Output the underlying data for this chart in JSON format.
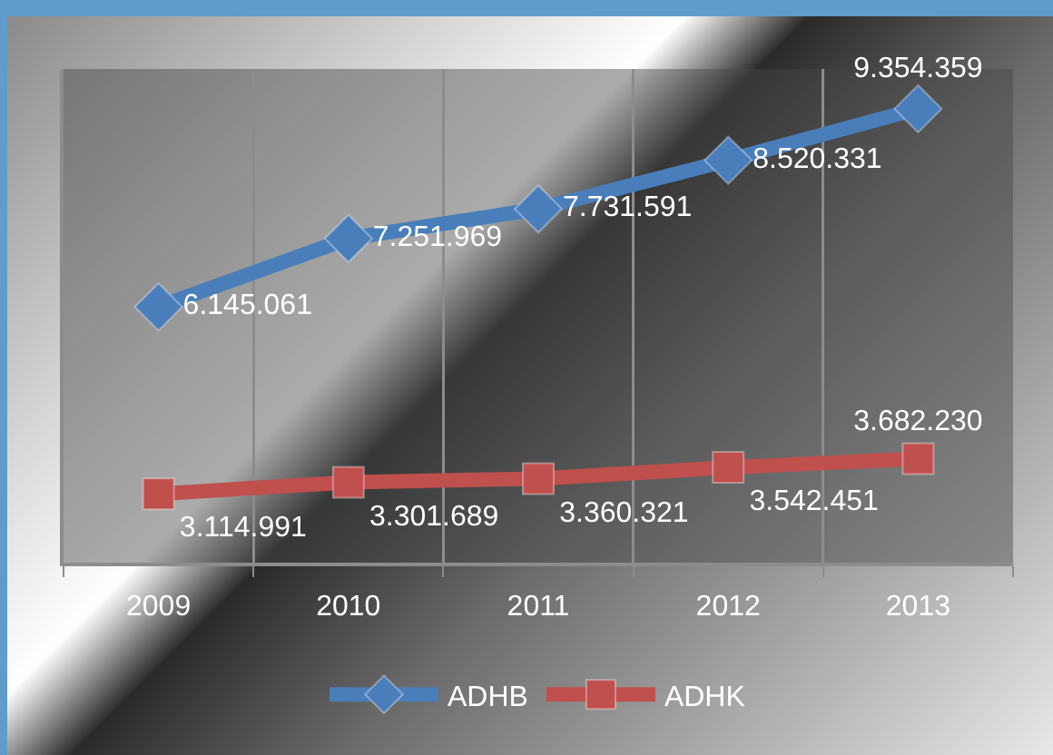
{
  "chart_data": {
    "type": "line",
    "categories": [
      "2009",
      "2010",
      "2011",
      "2012",
      "2013"
    ],
    "series": [
      {
        "name": "ADHB",
        "color": "#4a7ebb",
        "marker": "diamond",
        "values": [
          6145061,
          7251969,
          7731591,
          8520331,
          9354359
        ],
        "value_labels": [
          "6.145.061",
          "7.251.969",
          "7.731.591",
          "8.520.331",
          "9.354.359"
        ]
      },
      {
        "name": "ADHK",
        "color": "#c0504d",
        "marker": "square",
        "values": [
          3114991,
          3301689,
          3360321,
          3542451,
          3682230
        ],
        "value_labels": [
          "3.114.991",
          "3.301.689",
          "3.360.321",
          "3.542.451",
          "3.682.230"
        ]
      }
    ],
    "ylim": [
      2000000,
      10000000
    ],
    "grid": "x",
    "legend": "bottom",
    "tick_labels": "x"
  }
}
